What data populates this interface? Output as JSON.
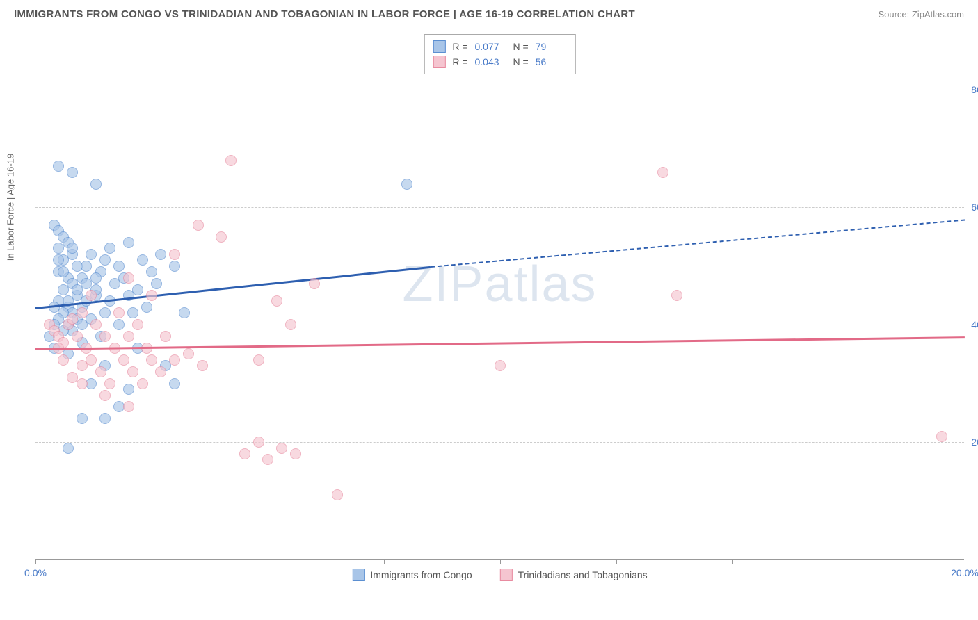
{
  "title": "IMMIGRANTS FROM CONGO VS TRINIDADIAN AND TOBAGONIAN IN LABOR FORCE | AGE 16-19 CORRELATION CHART",
  "source": "Source: ZipAtlas.com",
  "ylabel": "In Labor Force | Age 16-19",
  "watermark": "ZIPatlas",
  "chart": {
    "type": "scatter",
    "xlim": [
      0,
      20
    ],
    "ylim": [
      0,
      90
    ],
    "x_ticks": [
      0,
      2.5,
      5,
      7.5,
      10,
      12.5,
      15,
      17.5,
      20
    ],
    "x_tick_labels": {
      "0": "0.0%",
      "20": "20.0%"
    },
    "y_gridlines": [
      20,
      40,
      60,
      80
    ],
    "y_tick_labels": {
      "20": "20.0%",
      "40": "40.0%",
      "60": "60.0%",
      "80": "80.0%"
    },
    "grid_color": "#cccccc",
    "background_color": "#ffffff",
    "axis_color": "#999999",
    "series": [
      {
        "name": "Immigrants from Congo",
        "fill": "#a8c5e8",
        "stroke": "#5b8fd1",
        "line_color": "#2e5fb0",
        "R": "0.077",
        "N": "79",
        "trend_start": [
          0,
          43
        ],
        "trend_mid": [
          8.5,
          50
        ],
        "trend_end": [
          20,
          58
        ],
        "points": [
          [
            0.4,
            57
          ],
          [
            0.5,
            56
          ],
          [
            0.6,
            55
          ],
          [
            0.7,
            54
          ],
          [
            0.5,
            53
          ],
          [
            0.8,
            52
          ],
          [
            0.6,
            51
          ],
          [
            0.9,
            50
          ],
          [
            0.5,
            49
          ],
          [
            0.7,
            48
          ],
          [
            0.8,
            47
          ],
          [
            0.6,
            46
          ],
          [
            0.9,
            45
          ],
          [
            0.5,
            44
          ],
          [
            0.7,
            43
          ],
          [
            0.4,
            43
          ],
          [
            0.8,
            42
          ],
          [
            0.6,
            42
          ],
          [
            0.9,
            41
          ],
          [
            0.5,
            41
          ],
          [
            0.7,
            40
          ],
          [
            0.4,
            40
          ],
          [
            0.8,
            39
          ],
          [
            1.0,
            48
          ],
          [
            1.1,
            50
          ],
          [
            1.2,
            52
          ],
          [
            1.3,
            45
          ],
          [
            1.0,
            43
          ],
          [
            1.2,
            41
          ],
          [
            1.1,
            47
          ],
          [
            1.4,
            49
          ],
          [
            1.5,
            51
          ],
          [
            1.3,
            46
          ],
          [
            1.6,
            44
          ],
          [
            1.5,
            42
          ],
          [
            1.7,
            47
          ],
          [
            1.8,
            50
          ],
          [
            1.6,
            53
          ],
          [
            1.9,
            48
          ],
          [
            2.0,
            45
          ],
          [
            2.1,
            42
          ],
          [
            1.8,
            40
          ],
          [
            2.2,
            46
          ],
          [
            2.3,
            51
          ],
          [
            2.0,
            54
          ],
          [
            2.5,
            49
          ],
          [
            2.4,
            43
          ],
          [
            2.6,
            47
          ],
          [
            0.8,
            66
          ],
          [
            1.3,
            64
          ],
          [
            0.5,
            67
          ],
          [
            1.0,
            24
          ],
          [
            1.5,
            24
          ],
          [
            0.7,
            19
          ],
          [
            3.2,
            42
          ],
          [
            2.8,
            33
          ],
          [
            3.0,
            30
          ],
          [
            1.2,
            30
          ],
          [
            1.5,
            33
          ],
          [
            2.0,
            29
          ],
          [
            1.8,
            26
          ],
          [
            0.7,
            35
          ],
          [
            1.0,
            37
          ],
          [
            1.4,
            38
          ],
          [
            2.2,
            36
          ],
          [
            8.0,
            64
          ],
          [
            3.0,
            50
          ],
          [
            2.7,
            52
          ],
          [
            0.3,
            38
          ],
          [
            0.4,
            36
          ],
          [
            0.6,
            49
          ],
          [
            0.5,
            51
          ],
          [
            0.8,
            53
          ],
          [
            0.7,
            44
          ],
          [
            0.9,
            46
          ],
          [
            1.1,
            44
          ],
          [
            1.3,
            48
          ],
          [
            1.0,
            40
          ],
          [
            0.6,
            39
          ]
        ]
      },
      {
        "name": "Trinidadians and Tobagonians",
        "fill": "#f5c5d0",
        "stroke": "#e88ba0",
        "line_color": "#e26a87",
        "R": "0.043",
        "N": "56",
        "trend_start": [
          0,
          36
        ],
        "trend_mid": [
          20,
          38
        ],
        "trend_end": [
          20,
          38
        ],
        "points": [
          [
            0.3,
            40
          ],
          [
            0.4,
            39
          ],
          [
            0.5,
            38
          ],
          [
            0.7,
            40
          ],
          [
            0.6,
            37
          ],
          [
            0.8,
            41
          ],
          [
            0.5,
            36
          ],
          [
            1.0,
            42
          ],
          [
            0.9,
            38
          ],
          [
            1.1,
            36
          ],
          [
            1.3,
            40
          ],
          [
            1.2,
            34
          ],
          [
            1.5,
            38
          ],
          [
            1.4,
            32
          ],
          [
            1.7,
            36
          ],
          [
            1.6,
            30
          ],
          [
            1.9,
            34
          ],
          [
            1.8,
            42
          ],
          [
            2.1,
            32
          ],
          [
            2.0,
            38
          ],
          [
            2.3,
            30
          ],
          [
            2.2,
            40
          ],
          [
            2.5,
            34
          ],
          [
            2.4,
            36
          ],
          [
            2.7,
            32
          ],
          [
            2.8,
            38
          ],
          [
            3.0,
            34
          ],
          [
            3.3,
            35
          ],
          [
            3.6,
            33
          ],
          [
            4.0,
            55
          ],
          [
            1.0,
            30
          ],
          [
            1.5,
            28
          ],
          [
            2.0,
            26
          ],
          [
            4.2,
            68
          ],
          [
            5.2,
            44
          ],
          [
            6.0,
            47
          ],
          [
            5.5,
            40
          ],
          [
            4.8,
            34
          ],
          [
            4.5,
            18
          ],
          [
            5.0,
            17
          ],
          [
            5.3,
            19
          ],
          [
            5.6,
            18
          ],
          [
            4.8,
            20
          ],
          [
            6.5,
            11
          ],
          [
            10.0,
            33
          ],
          [
            13.5,
            66
          ],
          [
            13.8,
            45
          ],
          [
            19.5,
            21
          ],
          [
            3.5,
            57
          ],
          [
            3.0,
            52
          ],
          [
            2.5,
            45
          ],
          [
            2.0,
            48
          ],
          [
            1.2,
            45
          ],
          [
            1.0,
            33
          ],
          [
            0.8,
            31
          ],
          [
            0.6,
            34
          ]
        ]
      }
    ]
  }
}
